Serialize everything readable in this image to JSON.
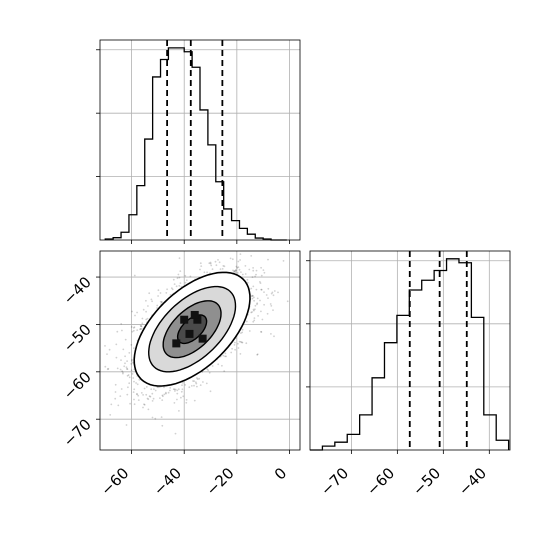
{
  "chart_data": {
    "type": "corner",
    "title": "",
    "parameters": [
      {
        "quantiles": [
          -46.5,
          -37.5,
          -25.5
        ],
        "hist_edges": [
          -70,
          -67,
          -64,
          -61,
          -58,
          -55,
          -52,
          -49,
          -46,
          -43,
          -40,
          -37,
          -34,
          -31,
          -28,
          -25,
          -22,
          -19,
          -16,
          -13,
          -10,
          -7,
          -4,
          -1
        ],
        "hist_counts": [
          0.005,
          0.012,
          0.04,
          0.13,
          0.28,
          0.52,
          0.84,
          0.93,
          0.99,
          0.99,
          0.97,
          0.89,
          0.67,
          0.49,
          0.3,
          0.16,
          0.1,
          0.06,
          0.03,
          0.01,
          0.005,
          0,
          0
        ],
        "xlim": [
          -72,
          4
        ],
        "xticks": [
          -60,
          -40,
          -20,
          0
        ],
        "xtick_labels": [
          "−60",
          "−40",
          "−20",
          "0"
        ]
      },
      {
        "quantiles": [
          -57.3,
          -50.8,
          -44.9
        ],
        "hist_edges": [
          -79,
          -76.3,
          -73.6,
          -70.9,
          -68.2,
          -65.5,
          -62.8,
          -60.1,
          -57.4,
          -54.7,
          -52,
          -49.3,
          -46.6,
          -43.9,
          -41.2,
          -38.5,
          -35.8
        ],
        "hist_counts": [
          0,
          0.02,
          0.04,
          0.08,
          0.18,
          0.37,
          0.55,
          0.69,
          0.82,
          0.87,
          0.92,
          0.98,
          0.96,
          0.68,
          0.18,
          0.05,
          0.0
        ],
        "xlim": [
          -79,
          -35.5
        ],
        "xticks": [
          -70,
          -60,
          -50,
          -40
        ],
        "xtick_labels": [
          "−70",
          "−60",
          "−50",
          "−40"
        ]
      }
    ],
    "joint": {
      "x_param": 0,
      "y_param": 1,
      "mean": [
        -37,
        -51
      ],
      "sd": [
        11,
        6
      ],
      "correlation": 0.55,
      "ylim": [
        -76.5,
        -34.5
      ],
      "yticks": [
        -40,
        -50,
        -60,
        -70
      ],
      "ytick_labels": [
        "−40",
        "−50",
        "−60",
        "−70"
      ],
      "contour_levels_sigma": [
        0.5,
        1.0,
        1.5,
        2.0
      ],
      "grid": true
    }
  }
}
